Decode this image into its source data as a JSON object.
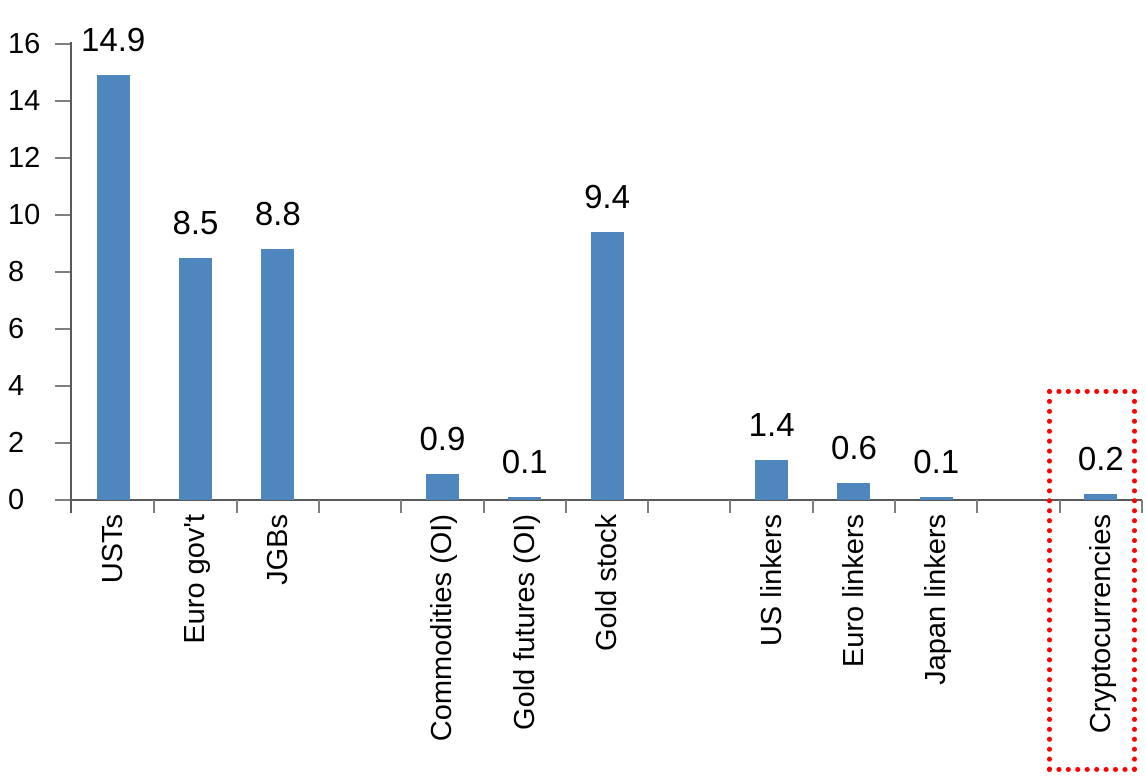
{
  "chart_data": {
    "type": "bar",
    "title": "",
    "xlabel": "",
    "ylabel": "",
    "categories": [
      "USTs",
      "Euro gov't",
      "JGBs",
      "",
      "Commodities (OI)",
      "Gold futures (OI)",
      "Gold stock",
      "",
      "US linkers",
      "Euro linkers",
      "Japan linkers",
      "",
      "Cryptocurrencies"
    ],
    "values": [
      14.9,
      8.5,
      8.8,
      null,
      0.9,
      0.1,
      9.4,
      null,
      1.4,
      0.6,
      0.1,
      null,
      0.2
    ],
    "data_labels": [
      "14.9",
      "8.5",
      "8.8",
      null,
      "0.9",
      "0.1",
      "9.4",
      null,
      "1.4",
      "0.6",
      "0.1",
      null,
      "0.2"
    ],
    "ylim": [
      0,
      16
    ],
    "yticks": [
      0,
      2,
      4,
      6,
      8,
      10,
      12,
      14,
      16
    ],
    "grid": "off",
    "legend": "none",
    "x_label_rotation_deg": 90,
    "colors": {
      "bar": "#4E86BE",
      "axis_line": "#595959",
      "tick": "#7F7F7F",
      "text": "#000000",
      "highlight_box": "#FF0000",
      "background": "#FFFFFF"
    },
    "highlight": {
      "slot": 12,
      "category": "Cryptocurrencies",
      "style": "red-dotted-box"
    }
  }
}
